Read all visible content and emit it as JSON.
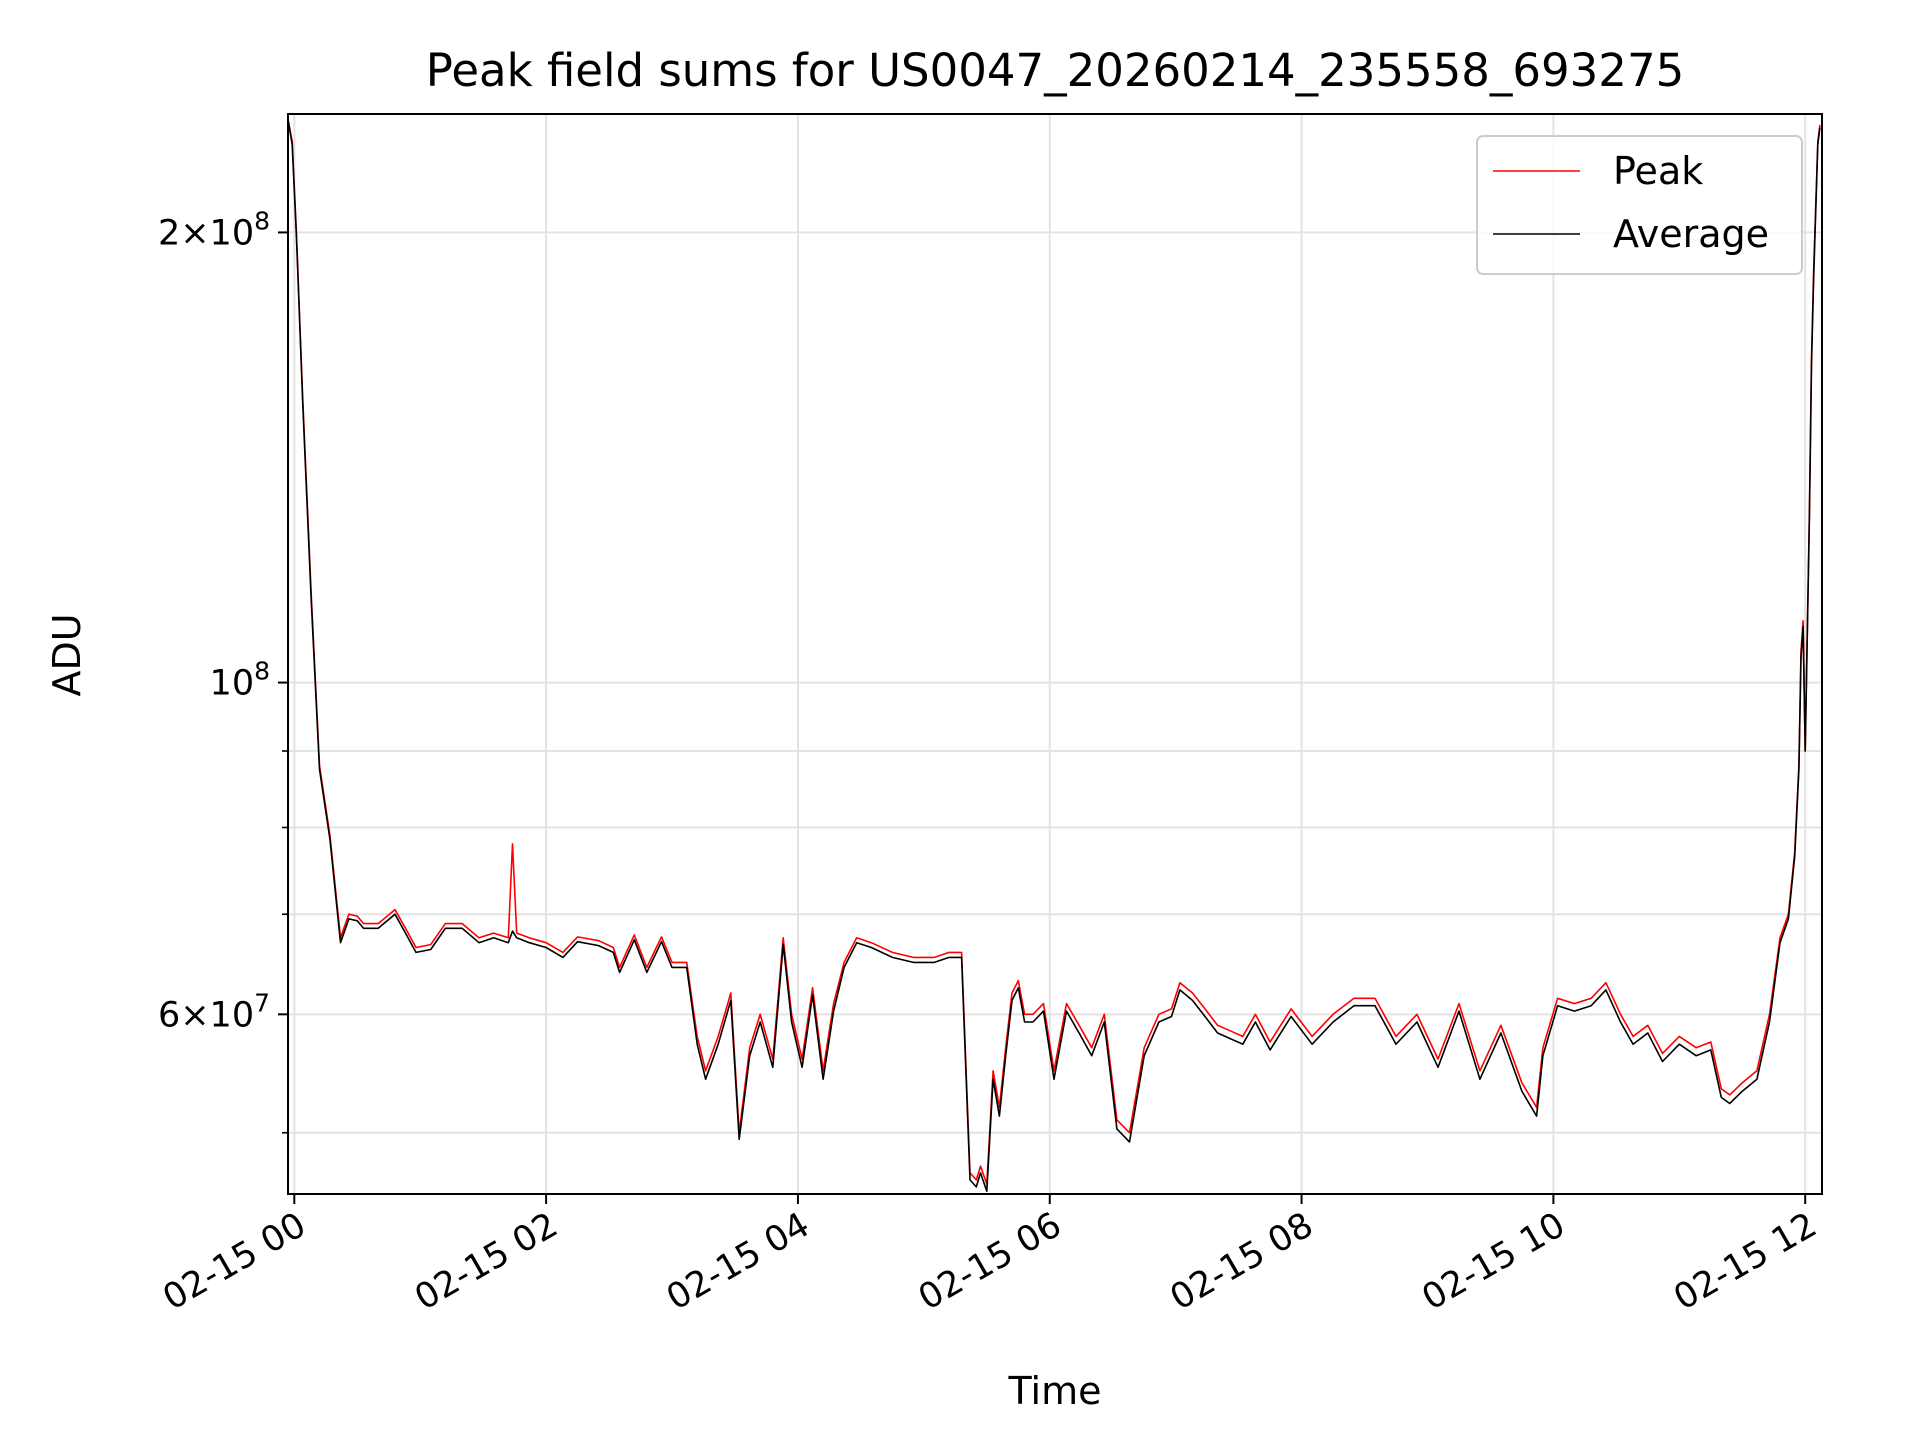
{
  "chart_data": {
    "type": "line",
    "title": "Peak field sums for US0047_20260214_235558_693275",
    "xlabel": "Time",
    "ylabel": "ADU",
    "x_range": [
      "2026-02-14 23:57",
      "2026-02-15 12:08"
    ],
    "y_scale": "log",
    "y_range": [
      45500000,
      240000000
    ],
    "grid": true,
    "legend_position": "upper right",
    "x_ticks": [
      {
        "t": "2026-02-15 00:00",
        "label": "02-15 00"
      },
      {
        "t": "2026-02-15 02:00",
        "label": "02-15 02"
      },
      {
        "t": "2026-02-15 04:00",
        "label": "02-15 04"
      },
      {
        "t": "2026-02-15 06:00",
        "label": "02-15 06"
      },
      {
        "t": "2026-02-15 08:00",
        "label": "02-15 08"
      },
      {
        "t": "2026-02-15 10:00",
        "label": "02-15 10"
      },
      {
        "t": "2026-02-15 12:00",
        "label": "02-15 12"
      }
    ],
    "y_ticks_major": [
      {
        "value": 60000000,
        "mantissa": "6",
        "exp": "7"
      },
      {
        "value": 100000000,
        "mantissa": "",
        "exp": "8"
      },
      {
        "value": 200000000,
        "mantissa": "2",
        "exp": "8"
      }
    ],
    "y_ticks_minor": [
      50000000,
      70000000,
      80000000,
      90000000
    ],
    "series": [
      {
        "name": "Peak",
        "color": "#ff0000",
        "x": [
          "2026-02-14 23:57",
          "2026-02-14 23:59",
          "2026-02-15 00:01",
          "2026-02-15 00:04",
          "2026-02-15 00:08",
          "2026-02-15 00:12",
          "2026-02-15 00:17",
          "2026-02-15 00:22",
          "2026-02-15 00:26",
          "2026-02-15 00:30",
          "2026-02-15 00:33",
          "2026-02-15 00:40",
          "2026-02-15 00:48",
          "2026-02-15 00:53",
          "2026-02-15 00:58",
          "2026-02-15 01:05",
          "2026-02-15 01:12",
          "2026-02-15 01:20",
          "2026-02-15 01:28",
          "2026-02-15 01:35",
          "2026-02-15 01:42",
          "2026-02-15 01:44",
          "2026-02-15 01:46",
          "2026-02-15 01:52",
          "2026-02-15 02:00",
          "2026-02-15 02:08",
          "2026-02-15 02:15",
          "2026-02-15 02:25",
          "2026-02-15 02:32",
          "2026-02-15 02:35",
          "2026-02-15 02:42",
          "2026-02-15 02:48",
          "2026-02-15 02:55",
          "2026-02-15 03:00",
          "2026-02-15 03:07",
          "2026-02-15 03:12",
          "2026-02-15 03:16",
          "2026-02-15 03:22",
          "2026-02-15 03:28",
          "2026-02-15 03:32",
          "2026-02-15 03:37",
          "2026-02-15 03:42",
          "2026-02-15 03:48",
          "2026-02-15 03:53",
          "2026-02-15 03:57",
          "2026-02-15 04:02",
          "2026-02-15 04:07",
          "2026-02-15 04:12",
          "2026-02-15 04:17",
          "2026-02-15 04:22",
          "2026-02-15 04:28",
          "2026-02-15 04:35",
          "2026-02-15 04:45",
          "2026-02-15 04:55",
          "2026-02-15 05:05",
          "2026-02-15 05:12",
          "2026-02-15 05:18",
          "2026-02-15 05:22",
          "2026-02-15 05:25",
          "2026-02-15 05:27",
          "2026-02-15 05:30",
          "2026-02-15 05:33",
          "2026-02-15 05:36",
          "2026-02-15 05:39",
          "2026-02-15 05:42",
          "2026-02-15 05:45",
          "2026-02-15 05:48",
          "2026-02-15 05:52",
          "2026-02-15 05:57",
          "2026-02-15 06:02",
          "2026-02-15 06:08",
          "2026-02-15 06:14",
          "2026-02-15 06:20",
          "2026-02-15 06:26",
          "2026-02-15 06:32",
          "2026-02-15 06:38",
          "2026-02-15 06:45",
          "2026-02-15 06:52",
          "2026-02-15 06:58",
          "2026-02-15 07:02",
          "2026-02-15 07:08",
          "2026-02-15 07:14",
          "2026-02-15 07:20",
          "2026-02-15 07:26",
          "2026-02-15 07:32",
          "2026-02-15 07:38",
          "2026-02-15 07:45",
          "2026-02-15 07:55",
          "2026-02-15 08:05",
          "2026-02-15 08:15",
          "2026-02-15 08:25",
          "2026-02-15 08:35",
          "2026-02-15 08:45",
          "2026-02-15 08:55",
          "2026-02-15 09:05",
          "2026-02-15 09:15",
          "2026-02-15 09:25",
          "2026-02-15 09:35",
          "2026-02-15 09:45",
          "2026-02-15 09:52",
          "2026-02-15 09:55",
          "2026-02-15 10:02",
          "2026-02-15 10:10",
          "2026-02-15 10:18",
          "2026-02-15 10:25",
          "2026-02-15 10:32",
          "2026-02-15 10:38",
          "2026-02-15 10:45",
          "2026-02-15 10:52",
          "2026-02-15 11:00",
          "2026-02-15 11:08",
          "2026-02-15 11:15",
          "2026-02-15 11:20",
          "2026-02-15 11:24",
          "2026-02-15 11:30",
          "2026-02-15 11:37",
          "2026-02-15 11:43",
          "2026-02-15 11:48",
          "2026-02-15 11:52",
          "2026-02-15 11:55",
          "2026-02-15 11:57",
          "2026-02-15 11:58",
          "2026-02-15 11:59",
          "2026-02-15 12:00",
          "2026-02-15 12:02",
          "2026-02-15 12:03",
          "2026-02-15 12:04",
          "2026-02-15 12:06",
          "2026-02-15 12:07"
        ],
        "y": [
          238000000,
          230000000,
          200000000,
          155000000,
          115000000,
          88000000,
          79000000,
          67500000,
          70000000,
          69800000,
          69000000,
          69000000,
          70500000,
          68500000,
          66500000,
          66800000,
          69000000,
          69000000,
          67500000,
          68000000,
          67500000,
          78000000,
          68000000,
          67500000,
          67000000,
          66000000,
          67600000,
          67200000,
          66500000,
          64500000,
          67800000,
          64500000,
          67600000,
          65000000,
          65000000,
          58000000,
          55000000,
          58000000,
          62000000,
          50000000,
          57000000,
          60000000,
          56000000,
          67500000,
          60000000,
          56000000,
          62500000,
          55000000,
          61000000,
          65000000,
          67500000,
          67000000,
          66000000,
          65500000,
          65500000,
          66000000,
          66000000,
          47000000,
          46500000,
          47500000,
          46200000,
          55000000,
          52000000,
          57000000,
          62000000,
          63200000,
          60000000,
          60000000,
          61000000,
          55000000,
          61000000,
          59000000,
          57000000,
          60000000,
          51000000,
          50000000,
          57000000,
          60000000,
          60500000,
          63000000,
          62000000,
          60500000,
          59000000,
          58500000,
          58000000,
          60000000,
          57500000,
          60500000,
          58000000,
          60000000,
          61500000,
          61500000,
          58000000,
          60000000,
          56000000,
          61000000,
          55000000,
          59000000,
          54000000,
          52000000,
          57000000,
          61500000,
          61000000,
          61500000,
          63000000,
          60000000,
          58000000,
          59000000,
          56500000,
          58000000,
          57000000,
          57500000,
          53500000,
          53000000,
          54000000,
          55000000,
          60000000,
          67500000,
          70000000,
          77000000,
          88000000,
          105000000,
          110000000,
          90000000,
          130000000,
          165000000,
          188000000,
          230000000,
          236000000
        ]
      },
      {
        "name": "Average",
        "color": "#000000",
        "x": [
          "2026-02-14 23:57",
          "2026-02-14 23:59",
          "2026-02-15 00:01",
          "2026-02-15 00:04",
          "2026-02-15 00:08",
          "2026-02-15 00:12",
          "2026-02-15 00:17",
          "2026-02-15 00:22",
          "2026-02-15 00:26",
          "2026-02-15 00:30",
          "2026-02-15 00:33",
          "2026-02-15 00:40",
          "2026-02-15 00:48",
          "2026-02-15 00:53",
          "2026-02-15 00:58",
          "2026-02-15 01:05",
          "2026-02-15 01:12",
          "2026-02-15 01:20",
          "2026-02-15 01:28",
          "2026-02-15 01:35",
          "2026-02-15 01:42",
          "2026-02-15 01:44",
          "2026-02-15 01:46",
          "2026-02-15 01:52",
          "2026-02-15 02:00",
          "2026-02-15 02:08",
          "2026-02-15 02:15",
          "2026-02-15 02:25",
          "2026-02-15 02:32",
          "2026-02-15 02:35",
          "2026-02-15 02:42",
          "2026-02-15 02:48",
          "2026-02-15 02:55",
          "2026-02-15 03:00",
          "2026-02-15 03:07",
          "2026-02-15 03:12",
          "2026-02-15 03:16",
          "2026-02-15 03:22",
          "2026-02-15 03:28",
          "2026-02-15 03:32",
          "2026-02-15 03:37",
          "2026-02-15 03:42",
          "2026-02-15 03:48",
          "2026-02-15 03:53",
          "2026-02-15 03:57",
          "2026-02-15 04:02",
          "2026-02-15 04:07",
          "2026-02-15 04:12",
          "2026-02-15 04:17",
          "2026-02-15 04:22",
          "2026-02-15 04:28",
          "2026-02-15 04:35",
          "2026-02-15 04:45",
          "2026-02-15 04:55",
          "2026-02-15 05:05",
          "2026-02-15 05:12",
          "2026-02-15 05:18",
          "2026-02-15 05:22",
          "2026-02-15 05:25",
          "2026-02-15 05:27",
          "2026-02-15 05:30",
          "2026-02-15 05:33",
          "2026-02-15 05:36",
          "2026-02-15 05:39",
          "2026-02-15 05:42",
          "2026-02-15 05:45",
          "2026-02-15 05:48",
          "2026-02-15 05:52",
          "2026-02-15 05:57",
          "2026-02-15 06:02",
          "2026-02-15 06:08",
          "2026-02-15 06:14",
          "2026-02-15 06:20",
          "2026-02-15 06:26",
          "2026-02-15 06:32",
          "2026-02-15 06:38",
          "2026-02-15 06:45",
          "2026-02-15 06:52",
          "2026-02-15 06:58",
          "2026-02-15 07:02",
          "2026-02-15 07:08",
          "2026-02-15 07:14",
          "2026-02-15 07:20",
          "2026-02-15 07:26",
          "2026-02-15 07:32",
          "2026-02-15 07:38",
          "2026-02-15 07:45",
          "2026-02-15 07:55",
          "2026-02-15 08:05",
          "2026-02-15 08:15",
          "2026-02-15 08:25",
          "2026-02-15 08:35",
          "2026-02-15 08:45",
          "2026-02-15 08:55",
          "2026-02-15 09:05",
          "2026-02-15 09:15",
          "2026-02-15 09:25",
          "2026-02-15 09:35",
          "2026-02-15 09:45",
          "2026-02-15 09:52",
          "2026-02-15 09:55",
          "2026-02-15 10:02",
          "2026-02-15 10:10",
          "2026-02-15 10:18",
          "2026-02-15 10:25",
          "2026-02-15 10:32",
          "2026-02-15 10:38",
          "2026-02-15 10:45",
          "2026-02-15 10:52",
          "2026-02-15 11:00",
          "2026-02-15 11:08",
          "2026-02-15 11:15",
          "2026-02-15 11:20",
          "2026-02-15 11:24",
          "2026-02-15 11:30",
          "2026-02-15 11:37",
          "2026-02-15 11:43",
          "2026-02-15 11:48",
          "2026-02-15 11:52",
          "2026-02-15 11:55",
          "2026-02-15 11:57",
          "2026-02-15 11:58",
          "2026-02-15 11:59",
          "2026-02-15 12:00",
          "2026-02-15 12:02",
          "2026-02-15 12:03",
          "2026-02-15 12:04",
          "2026-02-15 12:06",
          "2026-02-15 12:07"
        ],
        "y": [
          238000000,
          229000000,
          199000000,
          154000000,
          114000000,
          87500000,
          78500000,
          67000000,
          69500000,
          69300000,
          68500000,
          68500000,
          70000000,
          68000000,
          66000000,
          66300000,
          68500000,
          68500000,
          67000000,
          67500000,
          67000000,
          68200000,
          67500000,
          67000000,
          66500000,
          65500000,
          67100000,
          66700000,
          66000000,
          64000000,
          67300000,
          64000000,
          67100000,
          64500000,
          64500000,
          57300000,
          54300000,
          57300000,
          61300000,
          49500000,
          56300000,
          59300000,
          55300000,
          66800000,
          59300000,
          55300000,
          61800000,
          54300000,
          60300000,
          64500000,
          67000000,
          66500000,
          65500000,
          65000000,
          65000000,
          65500000,
          65500000,
          46500000,
          46000000,
          47000000,
          45700000,
          54300000,
          51300000,
          56300000,
          61300000,
          62500000,
          59300000,
          59300000,
          60300000,
          54300000,
          60300000,
          58300000,
          56300000,
          59300000,
          50300000,
          49300000,
          56300000,
          59300000,
          59800000,
          62300000,
          61300000,
          59800000,
          58300000,
          57800000,
          57300000,
          59300000,
          56800000,
          59800000,
          57300000,
          59300000,
          60800000,
          60800000,
          57300000,
          59300000,
          55300000,
          60300000,
          54300000,
          58300000,
          53300000,
          51300000,
          56300000,
          60800000,
          60300000,
          60800000,
          62300000,
          59300000,
          57300000,
          58300000,
          55800000,
          57300000,
          56300000,
          56800000,
          52800000,
          52300000,
          53300000,
          54300000,
          59300000,
          67000000,
          69500000,
          76500000,
          87500000,
          104000000,
          109000000,
          90000000,
          129000000,
          163000000,
          186000000,
          229000000,
          235000000
        ]
      }
    ]
  }
}
